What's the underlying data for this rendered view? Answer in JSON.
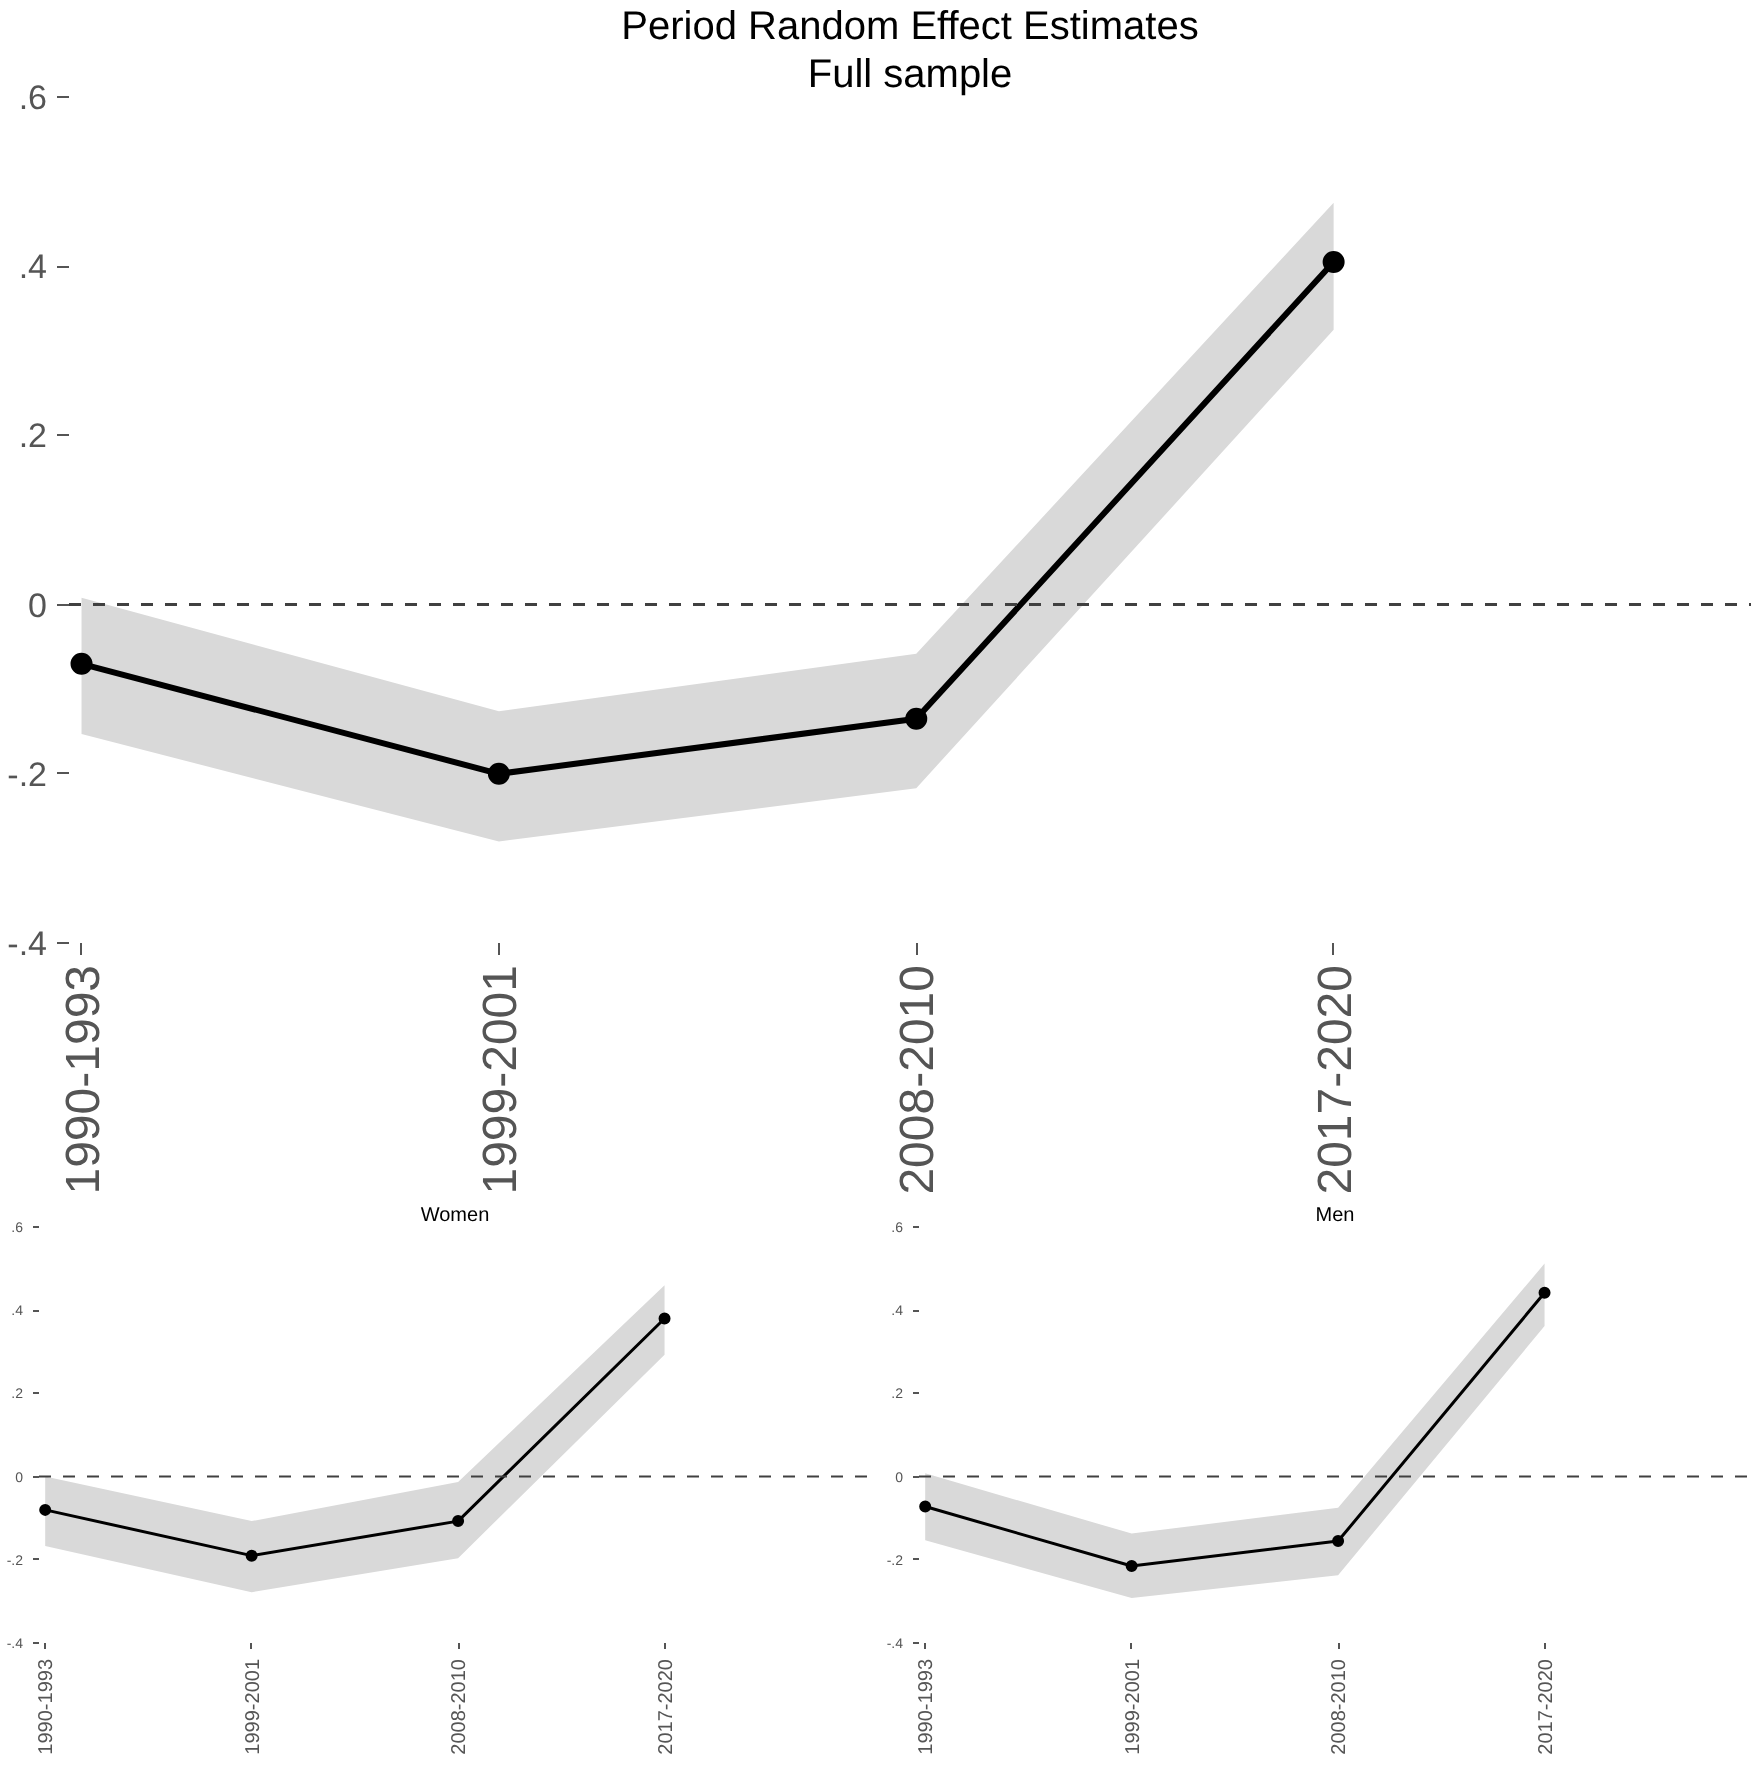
{
  "chart_data": [
    {
      "type": "line",
      "title": "Period Random Effect Estimates",
      "subtitle": "Full sample",
      "categories": [
        "1990-1993",
        "1999-2001",
        "2008-2010",
        "2017-2020"
      ],
      "marker": "circle",
      "grid": false,
      "ylim": [
        -0.4,
        0.6
      ],
      "yticks": [
        {
          "value": -0.4,
          "label": "-.4"
        },
        {
          "value": -0.2,
          "label": "-.2"
        },
        {
          "value": 0,
          "label": "0"
        },
        {
          "value": 0.2,
          "label": ".2"
        },
        {
          "value": 0.4,
          "label": ".4"
        },
        {
          "value": 0.6,
          "label": ".6"
        }
      ],
      "ref_lines": [
        {
          "axis": "y",
          "value": 0,
          "line_style": "dashed",
          "color": "#404040"
        }
      ],
      "series": [
        {
          "color": "#000000",
          "values": [
            -0.07,
            -0.2,
            -0.135,
            0.405
          ],
          "lower": [
            -0.153,
            -0.28,
            -0.217,
            0.325
          ],
          "upper": [
            0.008,
            -0.126,
            -0.058,
            0.475
          ]
        }
      ]
    },
    {
      "type": "line",
      "title": "Women",
      "categories": [
        "1990-1993",
        "1999-2001",
        "2008-2010",
        "2017-2020"
      ],
      "marker": "circle",
      "grid": false,
      "ylim": [
        -0.4,
        0.6
      ],
      "yticks": [
        {
          "value": -0.4,
          "label": "-.4"
        },
        {
          "value": -0.2,
          "label": "-.2"
        },
        {
          "value": 0,
          "label": "0"
        },
        {
          "value": 0.2,
          "label": ".2"
        },
        {
          "value": 0.4,
          "label": ".4"
        },
        {
          "value": 0.6,
          "label": ".6"
        }
      ],
      "ref_lines": [
        {
          "axis": "y",
          "value": 0,
          "line_style": "dashed",
          "color": "#404040"
        }
      ],
      "series": [
        {
          "color": "#000000",
          "values": [
            -0.08,
            -0.19,
            -0.107,
            0.38
          ],
          "lower": [
            -0.167,
            -0.278,
            -0.196,
            0.293
          ],
          "upper": [
            0.0,
            -0.107,
            -0.013,
            0.46
          ]
        }
      ]
    },
    {
      "type": "line",
      "title": "Men",
      "categories": [
        "1990-1993",
        "1999-2001",
        "2008-2010",
        "2017-2020"
      ],
      "marker": "circle",
      "grid": false,
      "ylim": [
        -0.4,
        0.6
      ],
      "yticks": [
        {
          "value": -0.4,
          "label": "-.4"
        },
        {
          "value": -0.2,
          "label": "-.2"
        },
        {
          "value": 0,
          "label": "0"
        },
        {
          "value": 0.2,
          "label": ".2"
        },
        {
          "value": 0.4,
          "label": ".4"
        },
        {
          "value": 0.6,
          "label": ".6"
        }
      ],
      "ref_lines": [
        {
          "axis": "y",
          "value": 0,
          "line_style": "dashed",
          "color": "#404040"
        }
      ],
      "series": [
        {
          "color": "#000000",
          "values": [
            -0.072,
            -0.215,
            -0.155,
            0.442
          ],
          "lower": [
            -0.153,
            -0.292,
            -0.237,
            0.362
          ],
          "upper": [
            0.008,
            -0.137,
            -0.075,
            0.512
          ]
        }
      ]
    }
  ]
}
